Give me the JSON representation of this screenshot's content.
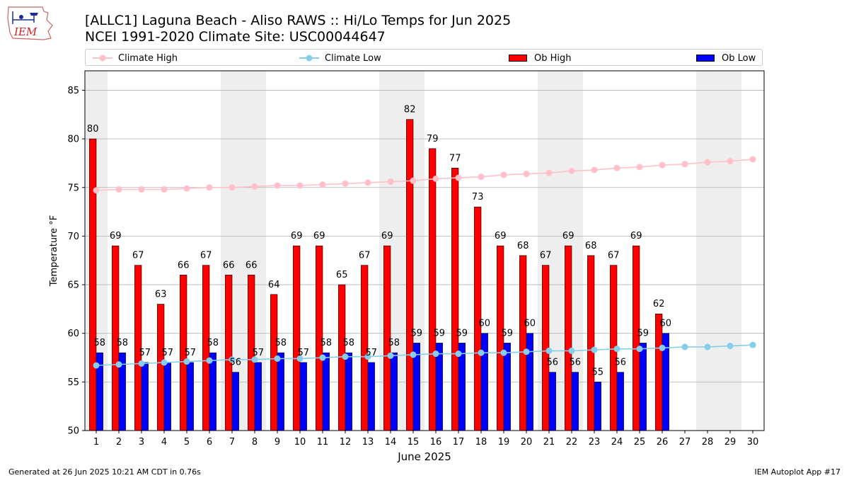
{
  "header": {
    "logo_text": "IEM",
    "title_line1": "[ALLC1] Laguna Beach - Aliso RAWS :: Hi/Lo Temps for Jun 2025",
    "title_line2": "NCEI 1991-2020 Climate Site: USC00044647"
  },
  "footer": {
    "generated": "Generated at 26 Jun 2025 10:21 AM CDT in 0.76s",
    "app": "IEM Autoplot App #17"
  },
  "colors": {
    "ob_high": "#ff0000",
    "ob_low": "#0000ff",
    "climate_high": "#ffc0cb",
    "climate_low": "#87ceeb",
    "weekend_shade": "#eeeeee",
    "grid": "#b0b0b0"
  },
  "chart_data": {
    "type": "bar",
    "xlabel": "June 2025",
    "ylabel": "Temperature °F",
    "ylim": [
      50,
      87
    ],
    "yticks": [
      50,
      55,
      60,
      65,
      70,
      75,
      80,
      85
    ],
    "grid": "horizontal",
    "legend_position": "top",
    "days": [
      1,
      2,
      3,
      4,
      5,
      6,
      7,
      8,
      9,
      10,
      11,
      12,
      13,
      14,
      15,
      16,
      17,
      18,
      19,
      20,
      21,
      22,
      23,
      24,
      25,
      26,
      27,
      28,
      29,
      30
    ],
    "weekend_day_pairs": [
      [
        1,
        1
      ],
      [
        7,
        8
      ],
      [
        14,
        15
      ],
      [
        21,
        22
      ],
      [
        28,
        29
      ]
    ],
    "series": [
      {
        "name": "Ob High",
        "kind": "bar",
        "values": [
          80,
          69,
          67,
          63,
          66,
          67,
          66,
          66,
          64,
          69,
          69,
          65,
          67,
          69,
          82,
          79,
          77,
          73,
          69,
          68,
          67,
          69,
          68,
          67,
          69,
          62
        ]
      },
      {
        "name": "Ob Low",
        "kind": "bar",
        "values": [
          58,
          58,
          57,
          57,
          57,
          58,
          56,
          57,
          58,
          57,
          58,
          58,
          57,
          58,
          59,
          59,
          59,
          60,
          59,
          60,
          56,
          56,
          55,
          56,
          59,
          60
        ]
      },
      {
        "name": "Climate High",
        "kind": "line",
        "values": [
          74.7,
          74.8,
          74.8,
          74.8,
          74.9,
          75.0,
          75.0,
          75.1,
          75.2,
          75.2,
          75.3,
          75.4,
          75.5,
          75.6,
          75.7,
          75.9,
          76.0,
          76.1,
          76.3,
          76.4,
          76.5,
          76.7,
          76.8,
          77.0,
          77.1,
          77.3,
          77.4,
          77.6,
          77.7,
          77.9
        ]
      },
      {
        "name": "Climate Low",
        "kind": "line",
        "values": [
          56.7,
          56.8,
          56.9,
          57.0,
          57.1,
          57.2,
          57.3,
          57.3,
          57.4,
          57.4,
          57.5,
          57.6,
          57.6,
          57.7,
          57.8,
          57.9,
          57.9,
          58.0,
          58.0,
          58.1,
          58.2,
          58.2,
          58.3,
          58.4,
          58.4,
          58.5,
          58.6,
          58.6,
          58.7,
          58.8
        ]
      }
    ]
  }
}
